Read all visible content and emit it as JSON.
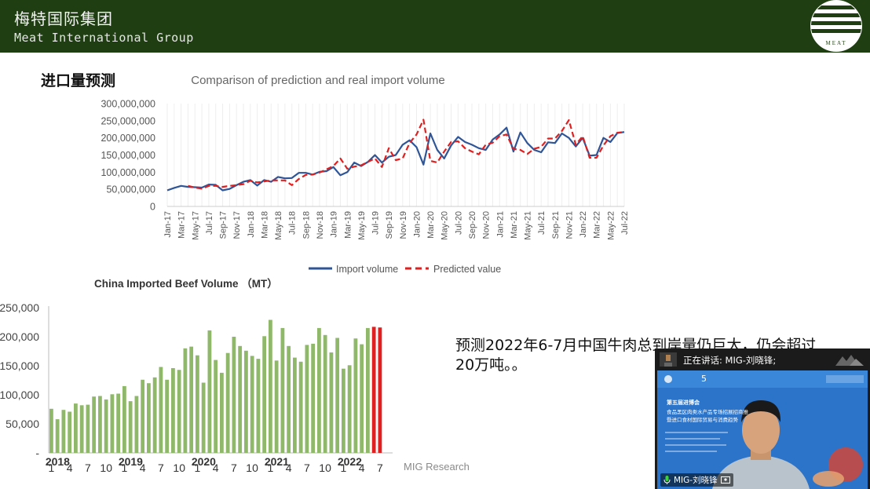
{
  "header": {
    "company_cn": "梅特国际集团",
    "company_en": "Meat International Group",
    "logo_text": "MEAT"
  },
  "page_title": "进口量预测",
  "chart1": {
    "title": "Comparison of prediction and real import volume",
    "legend": [
      "Import volume",
      "Predicted value"
    ],
    "colors": {
      "import": "#2f5597",
      "predicted": "#e02020"
    }
  },
  "chart2": {
    "title": "China Imported Beef Volume （MT）",
    "colors": {
      "bar": "#8fb86a",
      "forecast": "#e02020"
    }
  },
  "forecast_text_line1": "预测2022年6-7月中国牛肉总到岸量仍巨大，仍会超过",
  "forecast_text_line2": "20万吨。。",
  "source": "MIG Research",
  "meeting": {
    "speaking": "正在讲话: MIG-刘晓锋;",
    "participant": "MIG-刘晓锋",
    "slide_line1": "第五届进博会",
    "slide_line2": "食品黑区肉类水产品专场招展招商推",
    "slide_line3": "暨进口食材国际贸易与消费趋势"
  },
  "chart_data": [
    {
      "type": "line",
      "title": "Comparison of prediction and real import volume",
      "x": [
        "Jan-17",
        "Feb-17",
        "Mar-17",
        "Apr-17",
        "May-17",
        "Jun-17",
        "Jul-17",
        "Aug-17",
        "Sep-17",
        "Oct-17",
        "Nov-17",
        "Dec-17",
        "Jan-18",
        "Feb-18",
        "Mar-18",
        "Apr-18",
        "May-18",
        "Jun-18",
        "Jul-18",
        "Aug-18",
        "Sep-18",
        "Oct-18",
        "Nov-18",
        "Dec-18",
        "Jan-19",
        "Feb-19",
        "Mar-19",
        "Apr-19",
        "May-19",
        "Jun-19",
        "Jul-19",
        "Aug-19",
        "Sep-19",
        "Oct-19",
        "Nov-19",
        "Dec-19",
        "Jan-20",
        "Feb-20",
        "Mar-20",
        "Apr-20",
        "May-20",
        "Jun-20",
        "Jul-20",
        "Aug-20",
        "Sep-20",
        "Oct-20",
        "Nov-20",
        "Dec-20",
        "Jan-21",
        "Feb-21",
        "Mar-21",
        "Apr-21",
        "May-21",
        "Jun-21",
        "Jul-21",
        "Aug-21",
        "Sep-21",
        "Oct-21",
        "Nov-21",
        "Dec-21",
        "Jan-22",
        "Feb-22",
        "Mar-22",
        "Apr-22",
        "May-22",
        "Jun-22",
        "Jul-22"
      ],
      "x_tick_labels": [
        "Jan-17",
        "Mar-17",
        "May-17",
        "Jul-17",
        "Sep-17",
        "Nov-17",
        "Jan-18",
        "Mar-18",
        "May-18",
        "Jul-18",
        "Sep-18",
        "Nov-18",
        "Jan-19",
        "Mar-19",
        "May-19",
        "Jul-19",
        "Sep-19",
        "Nov-19",
        "Jan-20",
        "Mar-20",
        "May-20",
        "Jul-20",
        "Sep-20",
        "Nov-20",
        "Jan-21",
        "Mar-21",
        "May-21",
        "Jul-21",
        "Sep-21",
        "Nov-21",
        "Jan-22",
        "Mar-22",
        "May-22",
        "Jul-22"
      ],
      "y_tick_labels": [
        "0",
        "50,000,000",
        "100,000,000",
        "150,000,000",
        "200,000,000",
        "250,000,000",
        "300,000,000"
      ],
      "ylim": [
        0,
        300000000
      ],
      "series": [
        {
          "name": "Import volume",
          "values": [
            47000000,
            54000000,
            60000000,
            57000000,
            56000000,
            55000000,
            64000000,
            63000000,
            47000000,
            51000000,
            62000000,
            72000000,
            77000000,
            61000000,
            77000000,
            72000000,
            86000000,
            82000000,
            83000000,
            98000000,
            98000000,
            93000000,
            101000000,
            103000000,
            115000000,
            91000000,
            100000000,
            128000000,
            118000000,
            130000000,
            150000000,
            128000000,
            145000000,
            150000000,
            180000000,
            193000000,
            173000000,
            122000000,
            213000000,
            165000000,
            140000000,
            178000000,
            203000000,
            188000000,
            180000000,
            170000000,
            165000000,
            195000000,
            210000000,
            230000000,
            160000000,
            216000000,
            185000000,
            165000000,
            158000000,
            187000000,
            185000000,
            213000000,
            200000000,
            175000000,
            200000000,
            148000000,
            150000000,
            200000000,
            188000000,
            214000000,
            217000000
          ]
        },
        {
          "name": "Predicted value",
          "values": [
            null,
            null,
            null,
            60000000,
            55000000,
            52000000,
            60000000,
            60000000,
            57000000,
            60000000,
            62000000,
            65000000,
            75000000,
            70000000,
            73000000,
            76000000,
            76000000,
            76000000,
            62000000,
            80000000,
            92000000,
            93000000,
            99000000,
            108000000,
            118000000,
            140000000,
            110000000,
            116000000,
            120000000,
            130000000,
            140000000,
            115000000,
            170000000,
            135000000,
            140000000,
            185000000,
            210000000,
            253000000,
            133000000,
            128000000,
            160000000,
            188000000,
            190000000,
            170000000,
            160000000,
            152000000,
            180000000,
            186000000,
            205000000,
            210000000,
            168000000,
            165000000,
            153000000,
            168000000,
            174000000,
            198000000,
            198000000,
            220000000,
            252000000,
            180000000,
            205000000,
            142000000,
            142000000,
            178000000,
            205000000,
            215000000,
            217000000
          ]
        }
      ],
      "legend_position": "bottom",
      "grid": false
    },
    {
      "type": "bar",
      "title": "China Imported Beef Volume （MT）",
      "y_tick_labels": [
        "-",
        "50,000",
        "100,000",
        "150,000",
        "200,000",
        "250,000"
      ],
      "ylim": [
        0,
        250000
      ],
      "year_labels": [
        "2018",
        "2019",
        "2020",
        "2021",
        "2022"
      ],
      "month_tick_labels": [
        "1",
        "4",
        "7",
        "10",
        "1",
        "4",
        "7",
        "10",
        "1",
        "4",
        "7",
        "10",
        "1",
        "4",
        "7",
        "10",
        "1",
        "4",
        "7"
      ],
      "categories": [
        "2018-1",
        "2018-2",
        "2018-3",
        "2018-4",
        "2018-5",
        "2018-6",
        "2018-7",
        "2018-8",
        "2018-9",
        "2018-10",
        "2018-11",
        "2018-12",
        "2019-1",
        "2019-2",
        "2019-3",
        "2019-4",
        "2019-5",
        "2019-6",
        "2019-7",
        "2019-8",
        "2019-9",
        "2019-10",
        "2019-11",
        "2019-12",
        "2020-1",
        "2020-2",
        "2020-3",
        "2020-4",
        "2020-5",
        "2020-6",
        "2020-7",
        "2020-8",
        "2020-9",
        "2020-10",
        "2020-11",
        "2020-12",
        "2021-1",
        "2021-2",
        "2021-3",
        "2021-4",
        "2021-5",
        "2021-6",
        "2021-7",
        "2021-8",
        "2021-9",
        "2021-10",
        "2021-11",
        "2021-12",
        "2022-1",
        "2022-2",
        "2022-3",
        "2022-4",
        "2022-5",
        "2022-6",
        "2022-7"
      ],
      "values": [
        76000,
        58000,
        74000,
        71000,
        85000,
        82000,
        83000,
        97000,
        98000,
        92000,
        101000,
        102000,
        115000,
        89000,
        98000,
        126000,
        120000,
        130000,
        148000,
        126000,
        146000,
        143000,
        180000,
        183000,
        168000,
        121000,
        211000,
        160000,
        138000,
        172000,
        200000,
        184000,
        176000,
        167000,
        162000,
        201000,
        229000,
        159000,
        215000,
        184000,
        164000,
        157000,
        186000,
        188000,
        215000,
        203000,
        173000,
        198000,
        145000,
        151000,
        197000,
        187000,
        215000,
        217000,
        216000
      ],
      "forecast_from_index": 53
    }
  ]
}
